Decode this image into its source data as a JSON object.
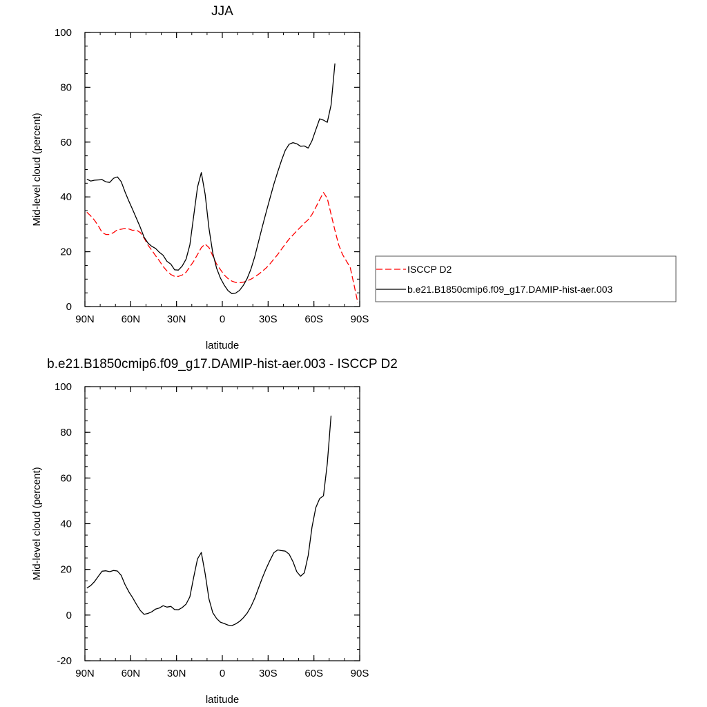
{
  "chart_data": [
    {
      "type": "line",
      "title": "JJA",
      "xlabel": "latitude",
      "ylabel": "Mid-level cloud (percent)",
      "xlim": [
        90,
        -90
      ],
      "ylim": [
        0,
        100
      ],
      "x_ticks": [
        {
          "value": 90,
          "label": "90N"
        },
        {
          "value": 60,
          "label": "60N"
        },
        {
          "value": 30,
          "label": "30N"
        },
        {
          "value": 0,
          "label": "0"
        },
        {
          "value": -30,
          "label": "30S"
        },
        {
          "value": -60,
          "label": "60S"
        },
        {
          "value": -90,
          "label": "90S"
        }
      ],
      "y_ticks": [
        {
          "value": 0,
          "label": "0"
        },
        {
          "value": 20,
          "label": "20"
        },
        {
          "value": 40,
          "label": "40"
        },
        {
          "value": 60,
          "label": "60"
        },
        {
          "value": 80,
          "label": "80"
        },
        {
          "value": 100,
          "label": "100"
        }
      ],
      "legend": {
        "placement": "right",
        "border": true
      },
      "series": [
        {
          "name": "ISCCP D2",
          "color": "#ff0000",
          "dash": true,
          "points": [
            [
              88.75,
              34.4
            ],
            [
              86.25,
              33.1
            ],
            [
              83.75,
              31.5
            ],
            [
              81.25,
              29.5
            ],
            [
              78.75,
              27.0
            ],
            [
              76.25,
              26.3
            ],
            [
              73.75,
              26.3
            ],
            [
              71.25,
              27.0
            ],
            [
              68.75,
              28.0
            ],
            [
              66.25,
              28.2
            ],
            [
              63.75,
              28.5
            ],
            [
              61.25,
              28.3
            ],
            [
              58.75,
              27.8
            ],
            [
              56.25,
              27.9
            ],
            [
              53.75,
              27.0
            ],
            [
              51.25,
              25.0
            ],
            [
              48.75,
              22.5
            ],
            [
              46.25,
              20.6
            ],
            [
              43.75,
              18.6
            ],
            [
              41.25,
              16.7
            ],
            [
              38.75,
              14.6
            ],
            [
              36.25,
              13.0
            ],
            [
              33.75,
              11.7
            ],
            [
              31.25,
              11.0
            ],
            [
              28.75,
              11.0
            ],
            [
              26.25,
              11.5
            ],
            [
              23.75,
              12.5
            ],
            [
              21.25,
              14.5
            ],
            [
              18.75,
              16.5
            ],
            [
              16.25,
              19.0
            ],
            [
              13.75,
              21.5
            ],
            [
              11.25,
              22.8
            ],
            [
              8.75,
              21.5
            ],
            [
              6.25,
              18.5
            ],
            [
              3.75,
              15.5
            ],
            [
              1.25,
              13.5
            ],
            [
              -1.25,
              11.5
            ],
            [
              -3.75,
              10.2
            ],
            [
              -6.25,
              9.3
            ],
            [
              -8.75,
              8.8
            ],
            [
              -11.25,
              8.7
            ],
            [
              -13.75,
              8.9
            ],
            [
              -16.25,
              9.4
            ],
            [
              -18.75,
              10.0
            ],
            [
              -21.25,
              10.8
            ],
            [
              -23.75,
              11.8
            ],
            [
              -26.25,
              12.9
            ],
            [
              -28.75,
              14.1
            ],
            [
              -31.25,
              15.6
            ],
            [
              -33.75,
              17.3
            ],
            [
              -36.25,
              19.0
            ],
            [
              -38.75,
              20.9
            ],
            [
              -41.25,
              22.8
            ],
            [
              -43.75,
              24.6
            ],
            [
              -46.25,
              26.1
            ],
            [
              -48.75,
              27.6
            ],
            [
              -51.25,
              29.0
            ],
            [
              -53.75,
              30.4
            ],
            [
              -56.25,
              31.7
            ],
            [
              -58.75,
              33.6
            ],
            [
              -61.25,
              36.2
            ],
            [
              -63.75,
              39.0
            ],
            [
              -66.25,
              41.6
            ],
            [
              -68.75,
              39.5
            ],
            [
              -71.25,
              33.7
            ],
            [
              -73.75,
              27.8
            ],
            [
              -76.25,
              22.5
            ],
            [
              -78.75,
              19.0
            ],
            [
              -81.25,
              16.6
            ],
            [
              -83.75,
              14.3
            ],
            [
              -86.25,
              8.0
            ],
            [
              -88.75,
              1.4
            ]
          ]
        },
        {
          "name": "b.e21.B1850cmip6.f09_g17.DAMIP-hist-aer.003",
          "color": "#000000",
          "dash": false,
          "points": [
            [
              88.75,
              46.5
            ],
            [
              86.25,
              45.8
            ],
            [
              83.75,
              46.1
            ],
            [
              81.25,
              46.2
            ],
            [
              78.75,
              46.3
            ],
            [
              76.25,
              45.5
            ],
            [
              73.75,
              45.3
            ],
            [
              71.25,
              46.8
            ],
            [
              68.75,
              47.3
            ],
            [
              66.25,
              45.6
            ],
            [
              63.75,
              41.9
            ],
            [
              61.25,
              38.5
            ],
            [
              58.75,
              35.4
            ],
            [
              56.25,
              32.2
            ],
            [
              53.75,
              28.9
            ],
            [
              51.25,
              25.3
            ],
            [
              48.75,
              23.2
            ],
            [
              46.25,
              22.0
            ],
            [
              43.75,
              21.2
            ],
            [
              41.25,
              19.8
            ],
            [
              38.75,
              18.7
            ],
            [
              36.25,
              16.5
            ],
            [
              33.75,
              15.5
            ],
            [
              31.25,
              13.4
            ],
            [
              28.75,
              13.3
            ],
            [
              26.25,
              14.8
            ],
            [
              23.75,
              17.3
            ],
            [
              21.25,
              22.5
            ],
            [
              18.75,
              33.0
            ],
            [
              16.25,
              43.6
            ],
            [
              13.75,
              48.9
            ],
            [
              11.25,
              41.0
            ],
            [
              8.75,
              28.5
            ],
            [
              6.25,
              19.5
            ],
            [
              3.75,
              14.0
            ],
            [
              1.25,
              10.4
            ],
            [
              -1.25,
              7.8
            ],
            [
              -3.75,
              5.8
            ],
            [
              -6.25,
              4.7
            ],
            [
              -8.75,
              4.9
            ],
            [
              -11.25,
              5.9
            ],
            [
              -13.75,
              7.7
            ],
            [
              -16.25,
              10.2
            ],
            [
              -18.75,
              13.7
            ],
            [
              -21.25,
              18.2
            ],
            [
              -23.75,
              23.7
            ],
            [
              -26.25,
              29.2
            ],
            [
              -28.75,
              34.5
            ],
            [
              -31.25,
              39.6
            ],
            [
              -33.75,
              44.6
            ],
            [
              -36.25,
              49.1
            ],
            [
              -38.75,
              53.3
            ],
            [
              -41.25,
              57.0
            ],
            [
              -43.75,
              59.2
            ],
            [
              -46.25,
              59.8
            ],
            [
              -48.75,
              59.4
            ],
            [
              -51.25,
              58.5
            ],
            [
              -53.75,
              58.6
            ],
            [
              -56.25,
              57.8
            ],
            [
              -58.75,
              60.5
            ],
            [
              -61.25,
              64.5
            ],
            [
              -63.75,
              68.5
            ],
            [
              -66.25,
              68.0
            ],
            [
              -68.75,
              67.2
            ],
            [
              -71.25,
              73.5
            ],
            [
              -73.75,
              88.7
            ]
          ]
        }
      ]
    },
    {
      "type": "line",
      "title": "b.e21.B1850cmip6.f09_g17.DAMIP-hist-aer.003 - ISCCP D2",
      "xlabel": "latitude",
      "ylabel": "Mid-level cloud (percent)",
      "xlim": [
        90,
        -90
      ],
      "ylim": [
        -20,
        100
      ],
      "x_ticks": [
        {
          "value": 90,
          "label": "90N"
        },
        {
          "value": 60,
          "label": "60N"
        },
        {
          "value": 30,
          "label": "30N"
        },
        {
          "value": 0,
          "label": "0"
        },
        {
          "value": -30,
          "label": "30S"
        },
        {
          "value": -60,
          "label": "60S"
        },
        {
          "value": -90,
          "label": "90S"
        }
      ],
      "y_ticks": [
        {
          "value": -20,
          "label": "-20"
        },
        {
          "value": 0,
          "label": "0"
        },
        {
          "value": 20,
          "label": "20"
        },
        {
          "value": 40,
          "label": "40"
        },
        {
          "value": 60,
          "label": "60"
        },
        {
          "value": 80,
          "label": "80"
        },
        {
          "value": 100,
          "label": "100"
        }
      ],
      "series": [
        {
          "color": "#000000",
          "dash": false,
          "points": [
            [
              88.75,
              11.8
            ],
            [
              86.25,
              12.9
            ],
            [
              83.75,
              14.6
            ],
            [
              81.25,
              16.9
            ],
            [
              78.75,
              19.2
            ],
            [
              76.25,
              19.4
            ],
            [
              73.75,
              19.0
            ],
            [
              71.25,
              19.5
            ],
            [
              68.75,
              19.3
            ],
            [
              66.25,
              17.4
            ],
            [
              63.75,
              13.4
            ],
            [
              61.25,
              10.2
            ],
            [
              58.75,
              7.6
            ],
            [
              56.25,
              4.7
            ],
            [
              53.75,
              2.0
            ],
            [
              51.25,
              0.3
            ],
            [
              48.75,
              0.7
            ],
            [
              46.25,
              1.4
            ],
            [
              43.75,
              2.6
            ],
            [
              41.25,
              3.1
            ],
            [
              38.75,
              4.1
            ],
            [
              36.25,
              3.5
            ],
            [
              33.75,
              3.8
            ],
            [
              31.25,
              2.4
            ],
            [
              28.75,
              2.3
            ],
            [
              26.25,
              3.3
            ],
            [
              23.75,
              4.8
            ],
            [
              21.25,
              8.0
            ],
            [
              18.75,
              16.5
            ],
            [
              16.25,
              24.6
            ],
            [
              13.75,
              27.4
            ],
            [
              11.25,
              18.2
            ],
            [
              8.75,
              7.0
            ],
            [
              6.25,
              1.0
            ],
            [
              3.75,
              -1.5
            ],
            [
              1.25,
              -3.1
            ],
            [
              -1.25,
              -3.7
            ],
            [
              -3.75,
              -4.4
            ],
            [
              -6.25,
              -4.6
            ],
            [
              -8.75,
              -3.9
            ],
            [
              -11.25,
              -2.8
            ],
            [
              -13.75,
              -1.2
            ],
            [
              -16.25,
              0.8
            ],
            [
              -18.75,
              3.7
            ],
            [
              -21.25,
              7.4
            ],
            [
              -23.75,
              11.9
            ],
            [
              -26.25,
              16.3
            ],
            [
              -28.75,
              20.4
            ],
            [
              -31.25,
              24.0
            ],
            [
              -33.75,
              27.3
            ],
            [
              -36.25,
              28.5
            ],
            [
              -38.75,
              28.2
            ],
            [
              -41.25,
              28.0
            ],
            [
              -43.75,
              26.7
            ],
            [
              -46.25,
              23.4
            ],
            [
              -48.75,
              19.0
            ],
            [
              -51.25,
              17.0
            ],
            [
              -53.75,
              18.5
            ],
            [
              -56.25,
              26.1
            ],
            [
              -58.75,
              38.5
            ],
            [
              -61.25,
              47.0
            ],
            [
              -63.75,
              51.0
            ],
            [
              -66.25,
              52.2
            ],
            [
              -68.75,
              66.2
            ],
            [
              -71.25,
              87.3
            ]
          ]
        }
      ]
    }
  ]
}
